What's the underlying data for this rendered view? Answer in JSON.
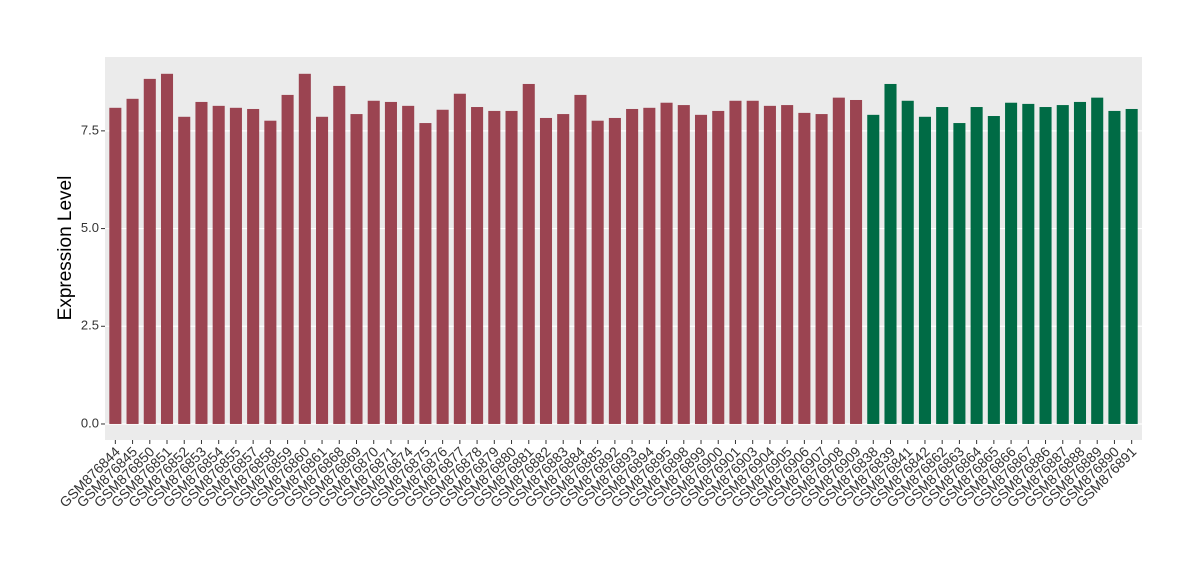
{
  "chart_data": {
    "type": "bar",
    "y_label": "Expression Level",
    "categories": [
      "GSM876844",
      "GSM876845",
      "GSM876850",
      "GSM876851",
      "GSM876852",
      "GSM876853",
      "GSM876854",
      "GSM876855",
      "GSM876857",
      "GSM876858",
      "GSM876859",
      "GSM876860",
      "GSM876861",
      "GSM876868",
      "GSM876869",
      "GSM876870",
      "GSM876871",
      "GSM876874",
      "GSM876875",
      "GSM876876",
      "GSM876877",
      "GSM876878",
      "GSM876879",
      "GSM876880",
      "GSM876881",
      "GSM876882",
      "GSM876883",
      "GSM876884",
      "GSM876885",
      "GSM876892",
      "GSM876893",
      "GSM876894",
      "GSM876895",
      "GSM876898",
      "GSM876899",
      "GSM876900",
      "GSM876901",
      "GSM876903",
      "GSM876904",
      "GSM876905",
      "GSM876906",
      "GSM876907",
      "GSM876908",
      "GSM876909",
      "GSM876838",
      "GSM876839",
      "GSM876841",
      "GSM876842",
      "GSM876862",
      "GSM876863",
      "GSM876864",
      "GSM876865",
      "GSM876866",
      "GSM876867",
      "GSM876886",
      "GSM876887",
      "GSM876888",
      "GSM876889",
      "GSM876890",
      "GSM876891"
    ],
    "values": [
      8.09,
      8.32,
      8.83,
      8.96,
      7.86,
      8.24,
      8.14,
      8.09,
      8.06,
      7.76,
      8.42,
      8.96,
      7.86,
      8.65,
      7.93,
      8.27,
      8.24,
      8.14,
      7.7,
      8.04,
      8.45,
      8.11,
      8.01,
      8.01,
      8.7,
      7.83,
      7.93,
      8.42,
      7.76,
      7.83,
      8.06,
      8.09,
      8.22,
      8.16,
      7.91,
      8.01,
      8.27,
      8.27,
      8.14,
      8.16,
      7.96,
      7.93,
      8.35,
      8.29,
      7.91,
      8.7,
      8.27,
      7.86,
      8.11,
      7.7,
      8.11,
      7.88,
      8.22,
      8.19,
      8.11,
      8.16,
      8.24,
      8.35,
      8.01,
      8.06
    ],
    "colors": [
      "#9b4451",
      "#9b4451",
      "#9b4451",
      "#9b4451",
      "#9b4451",
      "#9b4451",
      "#9b4451",
      "#9b4451",
      "#9b4451",
      "#9b4451",
      "#9b4451",
      "#9b4451",
      "#9b4451",
      "#9b4451",
      "#9b4451",
      "#9b4451",
      "#9b4451",
      "#9b4451",
      "#9b4451",
      "#9b4451",
      "#9b4451",
      "#9b4451",
      "#9b4451",
      "#9b4451",
      "#9b4451",
      "#9b4451",
      "#9b4451",
      "#9b4451",
      "#9b4451",
      "#9b4451",
      "#9b4451",
      "#9b4451",
      "#9b4451",
      "#9b4451",
      "#9b4451",
      "#9b4451",
      "#9b4451",
      "#9b4451",
      "#9b4451",
      "#9b4451",
      "#9b4451",
      "#9b4451",
      "#9b4451",
      "#9b4451",
      "#006b45",
      "#006b45",
      "#006b45",
      "#006b45",
      "#006b45",
      "#006b45",
      "#006b45",
      "#006b45",
      "#006b45",
      "#006b45",
      "#006b45",
      "#006b45",
      "#006b45",
      "#006b45",
      "#006b45",
      "#006b45"
    ],
    "ylim": [
      -0.41,
      9.39
    ],
    "yticks": [
      {
        "value": 0,
        "label": "0.0"
      },
      2.5,
      {
        "value": 5,
        "label": "5.0"
      },
      7.5
    ],
    "grid": true
  }
}
